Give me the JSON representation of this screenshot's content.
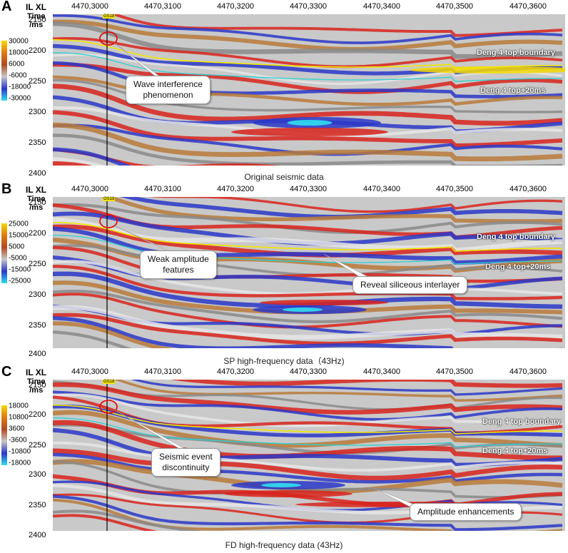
{
  "panels": [
    {
      "letter": "A",
      "axis_title": "IL XL",
      "time_label": [
        "Time",
        "/ms"
      ],
      "x_ticks": [
        "4470,3000",
        "4470,3100",
        "4470,3200",
        "4470,3300",
        "4470,3400",
        "4470,3500",
        "4470,3600"
      ],
      "y_ticks": [
        "2150",
        "2200",
        "2250",
        "2300",
        "2350",
        "2400"
      ],
      "colorbar_labels": [
        "30000",
        "18000",
        "6000",
        "-6000",
        "-18000",
        "-30000"
      ],
      "well_name": "GS18",
      "horizons": [
        "Deng 4 top boundary",
        "Deng 4 top+20ms"
      ],
      "callouts": [
        [
          "Wave interference",
          "phenomenon"
        ]
      ],
      "caption": "Original seismic data"
    },
    {
      "letter": "B",
      "axis_title": "IL XL",
      "time_label": [
        "Time",
        "/ms"
      ],
      "x_ticks": [
        "4470,3000",
        "4470,3100",
        "4470,3200",
        "4470,3300",
        "4470,3400",
        "4470,3500",
        "4470,3600"
      ],
      "y_ticks": [
        "2150",
        "2200",
        "2250",
        "2300",
        "2350",
        "2400"
      ],
      "colorbar_labels": [
        "25000",
        "15000",
        "5000",
        "-5000",
        "-15000",
        "-25000"
      ],
      "well_name": "GS18",
      "horizons": [
        "Deng 4 top boundary",
        "Deng 4 top+20ms"
      ],
      "callouts": [
        [
          "Weak amplitude",
          "features"
        ],
        [
          "Reveal siliceous interlayer"
        ]
      ],
      "caption": "SP high-frequency data（43Hz)"
    },
    {
      "letter": "C",
      "axis_title": "IL XL",
      "time_label": [
        "Time",
        "/ms"
      ],
      "x_ticks": [
        "4470,3000",
        "4470,3100",
        "4470,3200",
        "4470,3300",
        "4470,3400",
        "4470,3500",
        "4470,3600"
      ],
      "y_ticks": [
        "2150",
        "2200",
        "2250",
        "2300",
        "2350",
        "2400"
      ],
      "colorbar_labels": [
        "18000",
        "10800",
        "3600",
        "-3600",
        "-10800",
        "-18000"
      ],
      "well_name": "GS18",
      "horizons": [
        "Deng 4 top boundary",
        "Deng 4 top+20ms"
      ],
      "callouts": [
        [
          "Seismic event",
          "discontinuity"
        ],
        [
          "Amplitude enhancements"
        ]
      ],
      "caption": "FD high-frequency data (43Hz)"
    }
  ],
  "colors": {
    "positive_strong": "#f5d900",
    "positive": "#d8231c",
    "mid_positive": "#b87a3a",
    "neutral": "#c8c8c8",
    "negative": "#2a37c8",
    "negative_strong": "#30e0f0",
    "horizon_top": "#f2e600",
    "horizon_plus20": "#2fd0d0",
    "anomaly_circle": "#e01010"
  }
}
